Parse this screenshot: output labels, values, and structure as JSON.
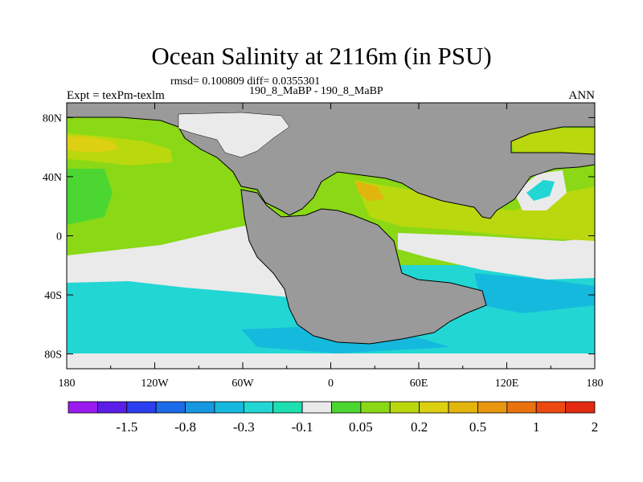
{
  "chart_data": {
    "type": "heatmap",
    "title": "Ocean Salinity at 2116m (in PSU)",
    "subtitle_stats": "rmsd= 0.100809 diff= 0.0355301",
    "subtitle_center": "190_8_MaBP - 190_8_MaBP",
    "left_label": "Expt = texPm-texlm",
    "right_label": "ANN",
    "x_ticks": [
      "180",
      "120W",
      "60W",
      "0",
      "60E",
      "120E",
      "180"
    ],
    "x_range": [
      -180,
      180
    ],
    "y_ticks": [
      "80N",
      "40N",
      "0",
      "40S",
      "80S"
    ],
    "y_range": [
      -90,
      90
    ],
    "colorbar": {
      "labels": [
        "-1.5",
        "-0.8",
        "-0.3",
        "-0.1",
        "0.05",
        "0.2",
        "0.5",
        "1",
        "2"
      ],
      "colors": [
        "#9a1cf0",
        "#5a1ee8",
        "#2b3ef0",
        "#1c6be8",
        "#1697e0",
        "#16b9de",
        "#22d6d4",
        "#1edfb0",
        "#eaeaea",
        "#4cd632",
        "#8ad816",
        "#bad80e",
        "#ddcf12",
        "#e2b40e",
        "#e8960e",
        "#ea720e",
        "#ec4a10",
        "#e32a10"
      ]
    },
    "land_color": "#9a9a9a",
    "regions": [
      {
        "name": "north-pacific",
        "value_class": "0.05-0.2",
        "color": "#8ad816"
      },
      {
        "name": "northeast-pacific-hotspot",
        "value_class": "0.5-1",
        "color": "#ddcf12"
      },
      {
        "name": "tropical-pacific-band",
        "value_class": "-0.1-0.05",
        "color": "#eaeaea"
      },
      {
        "name": "southern-ocean-band",
        "value_class": "-0.3--0.1",
        "color": "#22d6d4"
      },
      {
        "name": "tethys-ocean",
        "value_class": "0.2-0.5",
        "color": "#bad80e"
      },
      {
        "name": "antarctic-margin",
        "value_class": "-0.8--0.3",
        "color": "#16b9de"
      }
    ]
  }
}
